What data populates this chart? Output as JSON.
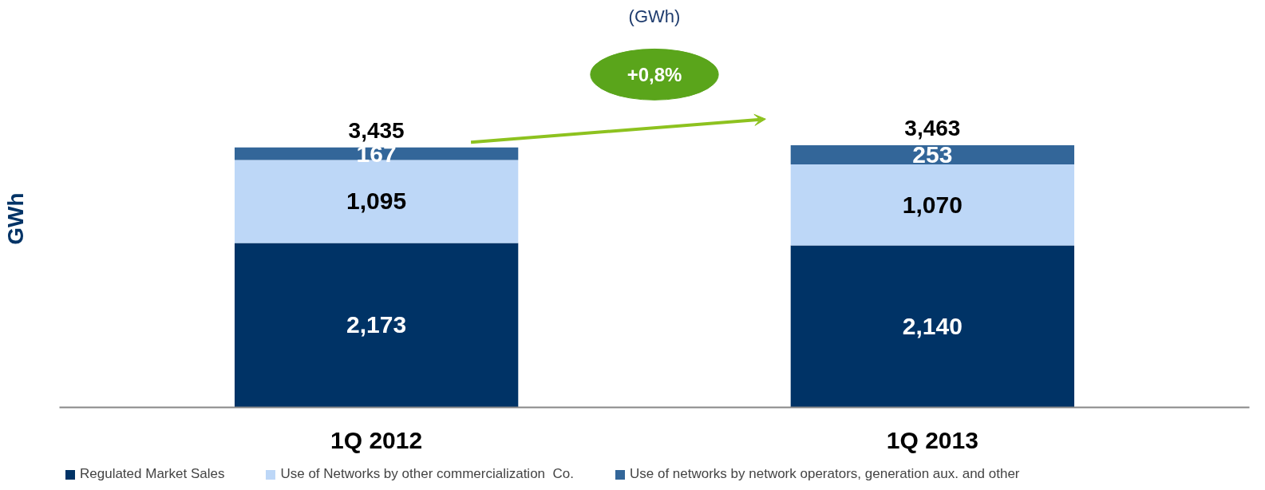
{
  "chart_data": {
    "type": "bar",
    "stacked": true,
    "title": "(GWh)",
    "ylabel": "GWh",
    "categories": [
      "1Q 2012",
      "1Q 2013"
    ],
    "series": [
      {
        "name": "Regulated Market Sales",
        "color": "#003366",
        "values": [
          2173,
          2140
        ],
        "value_labels": [
          "2,173",
          "2,140"
        ]
      },
      {
        "name": "Use of Networks by other commercialization  Co.",
        "color": "#bdd7f7",
        "values": [
          1095,
          1070
        ],
        "value_labels": [
          "1,095",
          "1,070"
        ]
      },
      {
        "name": "Use of networks by network operators, generation aux. and other",
        "color": "#336699",
        "values": [
          167,
          253
        ],
        "value_labels": [
          "167",
          "253"
        ]
      }
    ],
    "totals": [
      "3,435",
      "3,463"
    ],
    "annotations": [
      "+0,8%"
    ],
    "legend": "bottom",
    "tick_labels": "x"
  }
}
